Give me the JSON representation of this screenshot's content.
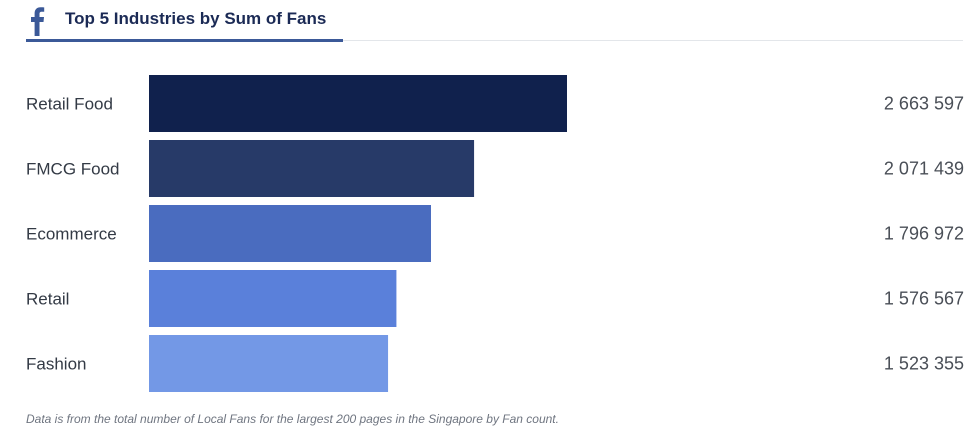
{
  "header": {
    "title": "Top 5 Industries by Sum of Fans",
    "icon": "facebook-f-icon",
    "icon_color": "#3b5998",
    "accent_color": "#3b5998"
  },
  "chart_data": {
    "type": "bar",
    "orientation": "horizontal",
    "title": "Top 5 Industries by Sum of Fans",
    "categories": [
      "Retail Food",
      "FMCG Food",
      "Ecommerce",
      "Retail",
      "Fashion"
    ],
    "values": [
      2663597,
      2071439,
      1796972,
      1576567,
      1523355
    ],
    "value_labels": [
      "2 663 597",
      "2 071 439",
      "1 796 972",
      "1 576 567",
      "1 523 355"
    ],
    "bar_colors": [
      "#10214d",
      "#273a68",
      "#4a6cbf",
      "#5a80da",
      "#7398e6"
    ],
    "xlim": [
      0,
      2663597
    ],
    "grid": false,
    "legend": "none"
  },
  "footnote": "Data is from the total number of Local Fans for the largest 200 pages in the Singapore by Fan count."
}
